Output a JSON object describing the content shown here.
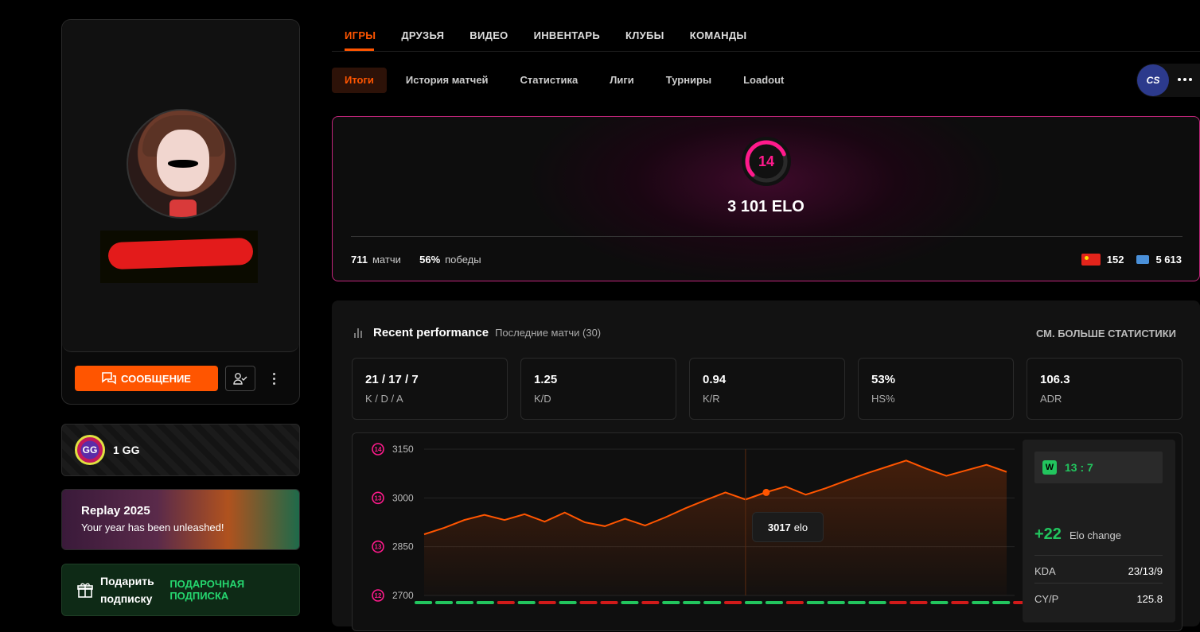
{
  "profile": {
    "message_label": "СООБЩЕНИЕ"
  },
  "gg": {
    "badge": "GG",
    "label": "1 GG"
  },
  "replay": {
    "title": "Replay 2025",
    "subtitle": "Your year has been unleashed!"
  },
  "gift": {
    "label": "Подарить подписку",
    "link": "ПОДАРОЧНАЯ ПОДПИСКА"
  },
  "topnav": [
    "ИГРЫ",
    "ДРУЗЬЯ",
    "ВИДЕО",
    "ИНВЕНТАРЬ",
    "КЛУБЫ",
    "КОМАНДЫ"
  ],
  "subnav": [
    "Итоги",
    "История матчей",
    "Статистика",
    "Лиги",
    "Турниры",
    "Loadout"
  ],
  "game_chip": "CS",
  "elo": {
    "level": "14",
    "level_progress": 0.75,
    "value": "3 101 ELO",
    "matches_num": "711",
    "matches_lbl": "матчи",
    "wins_num": "56%",
    "wins_lbl": "победы",
    "country_rank": "152",
    "global_rank": "5 613"
  },
  "performance": {
    "title": "Recent performance",
    "subtitle": "Последние матчи (30)",
    "more": "СМ. БОЛЬШЕ СТАТИСТИКИ",
    "stats": [
      {
        "value": "21 / 17 / 7",
        "label": "K / D / A"
      },
      {
        "value": "1.25",
        "label": "K/D"
      },
      {
        "value": "0.94",
        "label": "K/R"
      },
      {
        "value": "53%",
        "label": "HS%"
      },
      {
        "value": "106.3",
        "label": "ADR"
      }
    ]
  },
  "chart_data": {
    "type": "area",
    "y_ticks": [
      {
        "value": 3150,
        "level": "14"
      },
      {
        "value": 3000,
        "level": "13"
      },
      {
        "value": 2850,
        "level": "13"
      },
      {
        "value": 2700,
        "level": "12"
      }
    ],
    "ylim": [
      2700,
      3150
    ],
    "values": [
      2888,
      2908,
      2932,
      2948,
      2932,
      2950,
      2927,
      2955,
      2925,
      2913,
      2936,
      2915,
      2940,
      2968,
      2993,
      3017,
      2995,
      3017,
      3035,
      3010,
      3030,
      3053,
      3075,
      3095,
      3115,
      3090,
      3068,
      3085,
      3102,
      3080
    ],
    "results": [
      "W",
      "W",
      "W",
      "W",
      "L",
      "W",
      "L",
      "W",
      "L",
      "L",
      "W",
      "L",
      "W",
      "W",
      "W",
      "L",
      "W",
      "W",
      "L",
      "W",
      "W",
      "W",
      "W",
      "L",
      "L",
      "W",
      "L",
      "W",
      "W",
      "L"
    ],
    "highlight_index": 17,
    "color": "#ff5500"
  },
  "tooltip": {
    "value": "3017",
    "unit": "elo"
  },
  "match_panel": {
    "result_badge": "W",
    "score": "13 : 7",
    "elo_change": "+22",
    "elo_change_lbl": "Elo change",
    "rows": [
      {
        "label": "KDA",
        "value": "23/13/9"
      },
      {
        "label": "CY/P",
        "value": "125.8"
      }
    ]
  }
}
